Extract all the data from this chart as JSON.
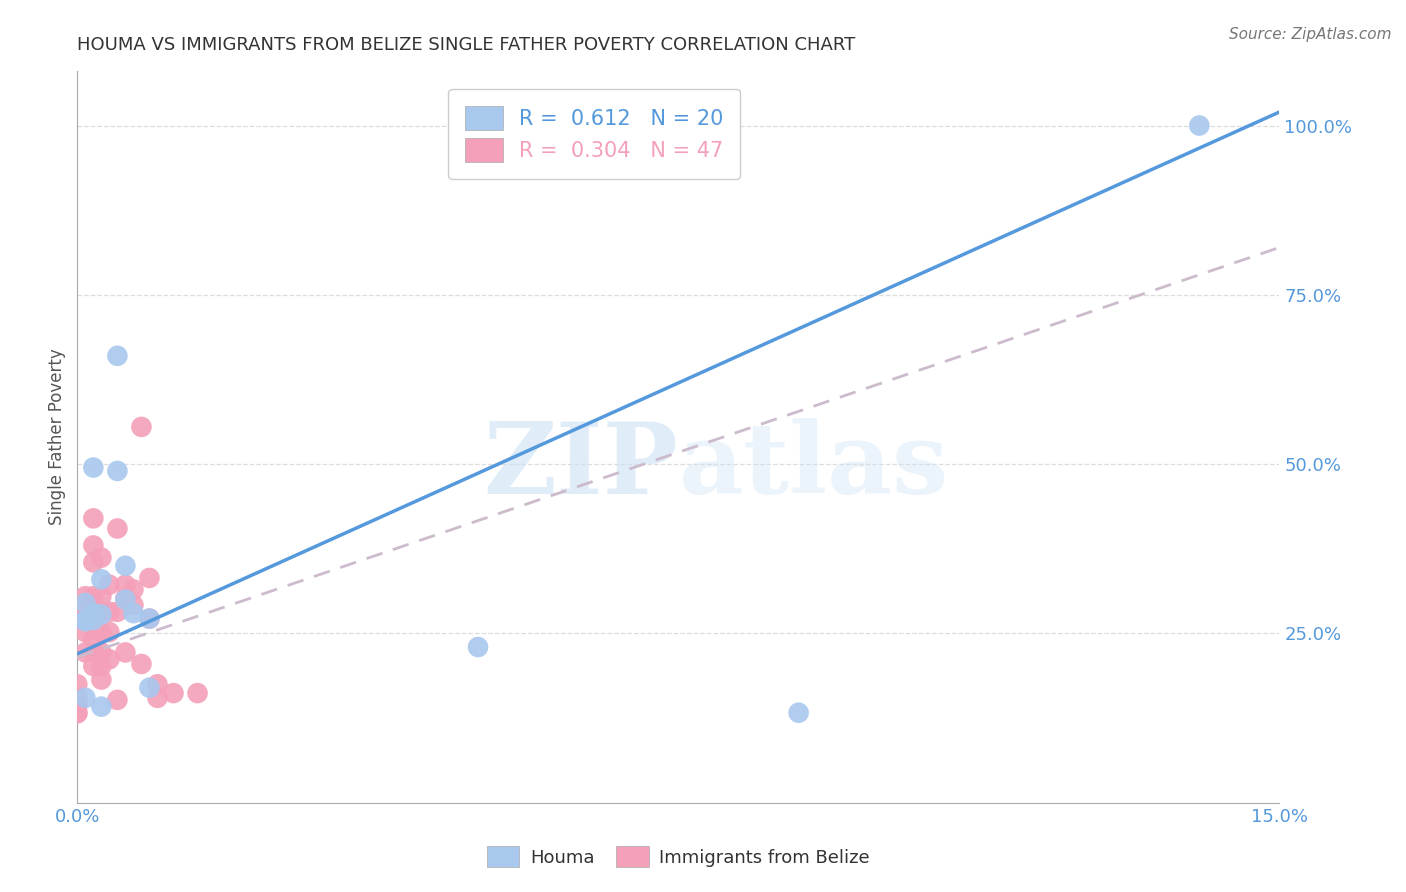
{
  "title": "HOUMA VS IMMIGRANTS FROM BELIZE SINGLE FATHER POVERTY CORRELATION CHART",
  "source": "Source: ZipAtlas.com",
  "ylabel": "Single Father Poverty",
  "watermark_zip": "ZIP",
  "watermark_atlas": "atlas",
  "xlim": [
    0.0,
    0.15
  ],
  "ylim": [
    0.0,
    1.08
  ],
  "xticks": [
    0.0,
    0.03,
    0.06,
    0.09,
    0.12,
    0.15
  ],
  "xticklabels": [
    "0.0%",
    "",
    "",
    "",
    "",
    "15.0%"
  ],
  "yticks": [
    0.25,
    0.5,
    0.75,
    1.0
  ],
  "yticklabels": [
    "25.0%",
    "50.0%",
    "75.0%",
    "100.0%"
  ],
  "label_houma": "Houma",
  "label_belize": "Immigrants from Belize",
  "houma_color": "#a8c8ee",
  "belize_color": "#f4a0b8",
  "houma_line_color": "#5599dd",
  "belize_line_color": "#ccbbcc",
  "axis_color": "#5599dd",
  "title_color": "#333333",
  "houma_x": [
    0.001,
    0.001,
    0.001,
    0.001,
    0.002,
    0.002,
    0.002,
    0.003,
    0.003,
    0.003,
    0.005,
    0.005,
    0.006,
    0.006,
    0.007,
    0.009,
    0.009,
    0.05,
    0.09,
    0.14
  ],
  "houma_y": [
    0.295,
    0.27,
    0.268,
    0.155,
    0.495,
    0.28,
    0.27,
    0.33,
    0.278,
    0.142,
    0.66,
    0.49,
    0.35,
    0.3,
    0.28,
    0.272,
    0.17,
    0.23,
    0.133,
    1.0
  ],
  "belize_x": [
    0.0,
    0.0,
    0.0,
    0.0,
    0.0,
    0.0,
    0.001,
    0.001,
    0.001,
    0.001,
    0.001,
    0.001,
    0.002,
    0.002,
    0.002,
    0.002,
    0.002,
    0.002,
    0.002,
    0.002,
    0.003,
    0.003,
    0.003,
    0.003,
    0.003,
    0.003,
    0.003,
    0.004,
    0.004,
    0.004,
    0.004,
    0.005,
    0.005,
    0.005,
    0.006,
    0.006,
    0.006,
    0.007,
    0.007,
    0.008,
    0.009,
    0.009,
    0.01,
    0.012,
    0.015,
    0.008,
    0.01
  ],
  "belize_y": [
    0.175,
    0.155,
    0.145,
    0.143,
    0.133,
    0.132,
    0.305,
    0.282,
    0.275,
    0.272,
    0.252,
    0.222,
    0.42,
    0.38,
    0.355,
    0.305,
    0.275,
    0.242,
    0.222,
    0.202,
    0.362,
    0.305,
    0.282,
    0.252,
    0.222,
    0.202,
    0.182,
    0.322,
    0.282,
    0.252,
    0.212,
    0.405,
    0.282,
    0.152,
    0.322,
    0.302,
    0.222,
    0.315,
    0.292,
    0.555,
    0.332,
    0.272,
    0.175,
    0.162,
    0.162,
    0.205,
    0.155
  ],
  "blue_line_x0": 0.0,
  "blue_line_y0": 0.22,
  "blue_line_x1": 0.15,
  "blue_line_y1": 1.02,
  "pink_line_x0": 0.0,
  "pink_line_y0": 0.215,
  "pink_line_x1": 0.15,
  "pink_line_y1": 0.82,
  "grid_color": "#dddddd",
  "background_color": "#ffffff"
}
